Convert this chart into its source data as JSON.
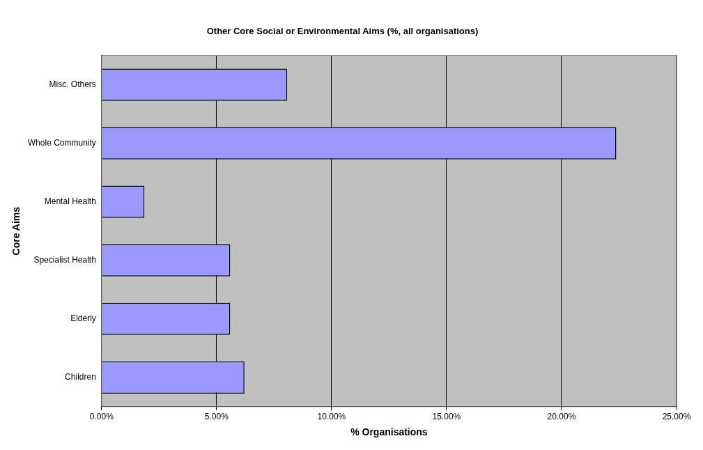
{
  "chart_data": {
    "type": "bar",
    "orientation": "horizontal",
    "title": "Other Core Social or Environmental Aims (%, all organisations)",
    "xlabel": "% Organisations",
    "ylabel": "Core Aims",
    "categories": [
      "Misc. Others",
      "Whole Community",
      "Mental Health",
      "Specialist Health",
      "Elderly",
      "Children"
    ],
    "values": [
      8.07,
      22.38,
      1.86,
      5.59,
      5.59,
      6.21
    ],
    "color": "#9999ff",
    "xlim": [
      0,
      25
    ],
    "xticks": [
      {
        "value": 0,
        "label": "0.00%"
      },
      {
        "value": 5,
        "label": "5.00%"
      },
      {
        "value": 10,
        "label": "10.00%"
      },
      {
        "value": 15,
        "label": "15.00%"
      },
      {
        "value": 20,
        "label": "20.00%"
      },
      {
        "value": 25,
        "label": "25.00%"
      }
    ],
    "grid": "x",
    "legend": false
  }
}
